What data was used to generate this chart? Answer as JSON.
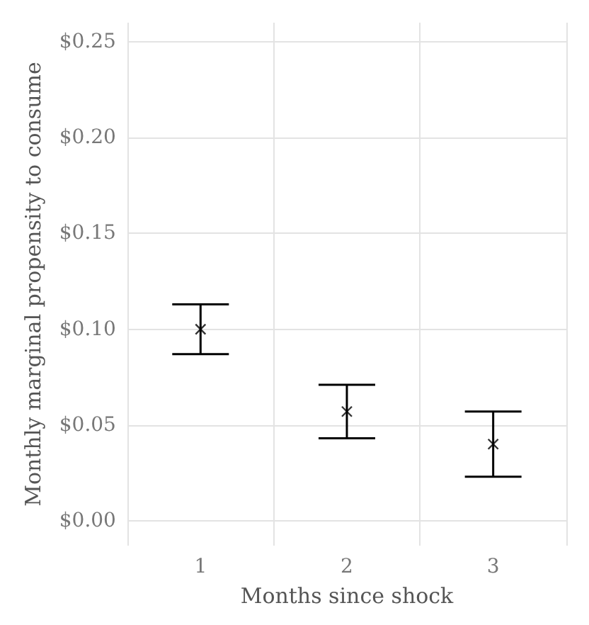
{
  "chart_data": {
    "type": "scatter",
    "xlabel": "Months since shock",
    "ylabel": "Monthly marginal propensity to consume",
    "categories": [
      "1",
      "2",
      "3"
    ],
    "values": [
      0.1,
      0.057,
      0.04
    ],
    "errors": [
      [
        0.087,
        0.113
      ],
      [
        0.043,
        0.071
      ],
      [
        0.023,
        0.057
      ]
    ],
    "color": "#000000",
    "marker": "cross",
    "grid": true,
    "ylim": [
      -0.013,
      0.26
    ],
    "yticks": [
      {
        "value": 0,
        "label": "$0.00"
      },
      {
        "value": 0.05,
        "label": "$0.05"
      },
      {
        "value": 0.1,
        "label": "$0.10"
      },
      {
        "value": 0.15,
        "label": "$0.15"
      },
      {
        "value": 0.2,
        "label": "$0.20"
      },
      {
        "value": 0.25,
        "label": "$0.25"
      }
    ]
  }
}
